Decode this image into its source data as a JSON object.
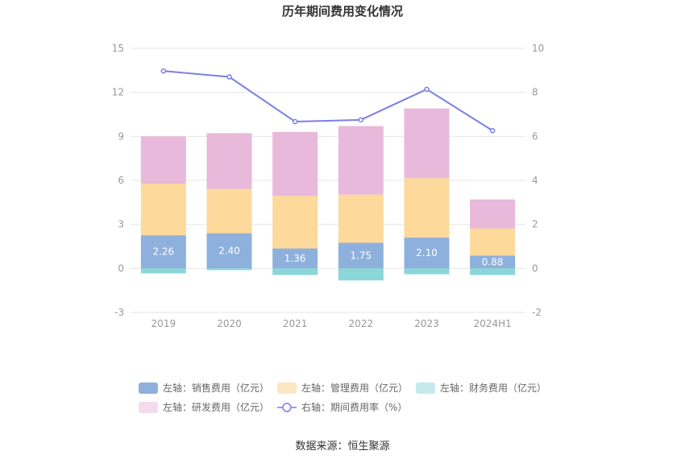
{
  "chart_data": {
    "type": "bar",
    "title": "历年期间费用变化情况",
    "categories": [
      "2019",
      "2020",
      "2021",
      "2022",
      "2023",
      "2024H1"
    ],
    "left_axis": {
      "min": -3,
      "max": 15,
      "ticks": [
        "-3",
        "0",
        "3",
        "6",
        "9",
        "12",
        "15"
      ]
    },
    "right_axis": {
      "min": -2,
      "max": 10,
      "ticks": [
        "-2",
        "0",
        "2",
        "4",
        "6",
        "8",
        "10"
      ]
    },
    "series": [
      {
        "name": "左轴：销售费用（亿元）",
        "type": "bar",
        "color": "#8eb0dd",
        "values": [
          2.26,
          2.4,
          1.36,
          1.75,
          2.1,
          0.88
        ],
        "labels": [
          "2.26",
          "2.40",
          "1.36",
          "1.75",
          "2.10",
          "0.88"
        ]
      },
      {
        "name": "左轴：管理费用（亿元）",
        "type": "bar",
        "color": "#fdd99b",
        "values": [
          3.52,
          3.02,
          3.58,
          3.28,
          4.05,
          1.85
        ]
      },
      {
        "name": "左轴：财务费用（亿元）",
        "type": "bar",
        "color": "#8bd6d8",
        "values": [
          -0.34,
          -0.12,
          -0.45,
          -0.82,
          -0.4,
          -0.45
        ]
      },
      {
        "name": "左轴：研发费用（亿元）",
        "type": "bar",
        "color": "#e8b9da",
        "values": [
          3.22,
          3.8,
          4.36,
          4.67,
          4.75,
          1.97
        ]
      },
      {
        "name": "右轴：期间费用率（%）",
        "type": "line",
        "color": "#7b7fe6",
        "values": [
          8.97,
          8.7,
          6.67,
          6.75,
          8.14,
          6.26
        ]
      }
    ],
    "grid": true,
    "legend_position": "bottom"
  },
  "legend_colors": {
    "销售": "#8eb0dd",
    "管理": "#fde6c2",
    "财务": "#c6eaeb",
    "研发": "#f4dcee"
  },
  "source": "数据来源：恒生聚源"
}
